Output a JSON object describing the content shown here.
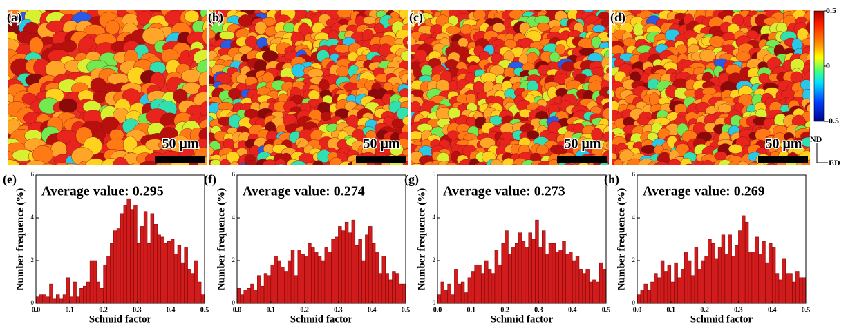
{
  "maps": [
    {
      "label": "(a)",
      "scale_bar": "50 μm"
    },
    {
      "label": "(b)",
      "scale_bar": "50 μm"
    },
    {
      "label": "(c)",
      "scale_bar": "50 μm"
    },
    {
      "label": "(d)",
      "scale_bar": "50 μm"
    }
  ],
  "colorbar": {
    "lim": [
      -0.5,
      0.5
    ],
    "ticks": [
      0.5,
      0,
      -0.5
    ]
  },
  "axes_key": {
    "nd": "ND",
    "ed": "ED"
  },
  "chart_data": [
    {
      "type": "histogram",
      "panel": "(e)",
      "title": "Average value: 0.295",
      "xlabel": "Schmid factor",
      "ylabel": "Number frequence (%)",
      "color": "#d01c1c",
      "bins": [
        0,
        0.01,
        0.02,
        0.03,
        0.04,
        0.05,
        0.06,
        0.07,
        0.08,
        0.09,
        0.1,
        0.11,
        0.12,
        0.13,
        0.14,
        0.15,
        0.16,
        0.17,
        0.18,
        0.19,
        0.2,
        0.21,
        0.22,
        0.23,
        0.24,
        0.25,
        0.26,
        0.27,
        0.28,
        0.29,
        0.3,
        0.31,
        0.32,
        0.33,
        0.34,
        0.35,
        0.36,
        0.37,
        0.38,
        0.39,
        0.4,
        0.41,
        0.42,
        0.43,
        0.44,
        0.45,
        0.46,
        0.47,
        0.48,
        0.49,
        0.5
      ],
      "values": [
        0.3,
        0.4,
        0.4,
        0.3,
        0.9,
        0.2,
        0.4,
        0.2,
        0.4,
        1.2,
        0.3,
        1.0,
        0.3,
        0.7,
        0.8,
        1.0,
        2.0,
        2.0,
        1.0,
        0.7,
        1.8,
        2.2,
        2.8,
        3.4,
        3.5,
        4.2,
        4.6,
        4.9,
        4.4,
        4.6,
        2.8,
        3.6,
        4.3,
        2.8,
        4.2,
        3.7,
        3.2,
        3.1,
        2.8,
        2.9,
        3.0,
        2.3,
        2.7,
        1.9,
        2.6,
        1.6,
        1.4,
        2.0,
        1.0,
        0.4
      ],
      "xlim": [
        0,
        0.5
      ],
      "ylim": [
        0,
        6
      ],
      "xticks": [
        {
          "value": 0,
          "label": "0.0"
        },
        0.1,
        0.2,
        0.3,
        0.4,
        0.5
      ],
      "yticks": [
        0,
        2,
        4,
        6
      ]
    },
    {
      "type": "histogram",
      "panel": "(f)",
      "title": "Average value: 0.274",
      "xlabel": "Schmid factor",
      "ylabel": "Number frequence (%)",
      "color": "#d01c1c",
      "bins": [
        0,
        0.01,
        0.02,
        0.03,
        0.04,
        0.05,
        0.06,
        0.07,
        0.08,
        0.09,
        0.1,
        0.11,
        0.12,
        0.13,
        0.14,
        0.15,
        0.16,
        0.17,
        0.18,
        0.19,
        0.2,
        0.21,
        0.22,
        0.23,
        0.24,
        0.25,
        0.26,
        0.27,
        0.28,
        0.29,
        0.3,
        0.31,
        0.32,
        0.33,
        0.34,
        0.35,
        0.36,
        0.37,
        0.38,
        0.39,
        0.4,
        0.41,
        0.42,
        0.43,
        0.44,
        0.45,
        0.46,
        0.47,
        0.48,
        0.49,
        0.5
      ],
      "values": [
        0.7,
        0.4,
        0.6,
        0.7,
        0.9,
        0.6,
        1.3,
        0.8,
        1.4,
        1.3,
        1.8,
        2.2,
        2.0,
        1.7,
        1.5,
        2.0,
        2.5,
        1.3,
        2.5,
        2.3,
        2.2,
        2.8,
        2.6,
        2.4,
        2.2,
        2.0,
        2.6,
        2.4,
        3.0,
        3.1,
        3.6,
        3.4,
        3.8,
        3.3,
        3.9,
        2.7,
        3.0,
        2.0,
        3.2,
        3.6,
        2.8,
        2.4,
        1.4,
        2.2,
        1.4,
        1.1,
        1.5,
        1.4,
        0.9,
        0.9
      ],
      "xlim": [
        0,
        0.5
      ],
      "ylim": [
        0,
        6
      ],
      "xticks": [
        {
          "value": 0,
          "label": "0.0"
        },
        0.1,
        0.2,
        0.3,
        0.4,
        0.5
      ],
      "yticks": [
        0,
        2,
        4,
        6
      ]
    },
    {
      "type": "histogram",
      "panel": "(g)",
      "title": "Average value: 0.273",
      "xlabel": "Schmid factor",
      "ylabel": "Number frequence (%)",
      "color": "#d01c1c",
      "bins": [
        0,
        0.01,
        0.02,
        0.03,
        0.04,
        0.05,
        0.06,
        0.07,
        0.08,
        0.09,
        0.1,
        0.11,
        0.12,
        0.13,
        0.14,
        0.15,
        0.16,
        0.17,
        0.18,
        0.19,
        0.2,
        0.21,
        0.22,
        0.23,
        0.24,
        0.25,
        0.26,
        0.27,
        0.28,
        0.29,
        0.3,
        0.31,
        0.32,
        0.33,
        0.34,
        0.35,
        0.36,
        0.37,
        0.38,
        0.39,
        0.4,
        0.41,
        0.42,
        0.43,
        0.44,
        0.45,
        0.46,
        0.47,
        0.48,
        0.49,
        0.5
      ],
      "values": [
        0.4,
        1.0,
        0.6,
        0.9,
        0.4,
        1.6,
        0.9,
        1.0,
        0.5,
        1.2,
        1.5,
        1.8,
        1.8,
        1.4,
        2.0,
        1.6,
        1.4,
        2.5,
        1.8,
        2.8,
        3.4,
        2.3,
        2.6,
        2.8,
        3.3,
        2.9,
        2.6,
        3.3,
        3.0,
        3.9,
        2.6,
        3.4,
        2.3,
        2.8,
        2.8,
        2.4,
        2.5,
        2.9,
        2.3,
        2.4,
        2.0,
        2.2,
        1.6,
        1.4,
        1.6,
        1.0,
        1.1,
        1.0,
        1.9,
        1.6
      ],
      "xlim": [
        0,
        0.5
      ],
      "ylim": [
        0,
        6
      ],
      "xticks": [
        {
          "value": 0,
          "label": "0.0"
        },
        0.1,
        0.2,
        0.3,
        0.4,
        0.5
      ],
      "yticks": [
        0,
        2,
        4,
        6
      ]
    },
    {
      "type": "histogram",
      "panel": "(h)",
      "title": "Average value: 0.269",
      "xlabel": "Schmid factor",
      "ylabel": "Number frequence (%)",
      "color": "#d01c1c",
      "bins": [
        0,
        0.01,
        0.02,
        0.03,
        0.04,
        0.05,
        0.06,
        0.07,
        0.08,
        0.09,
        0.1,
        0.11,
        0.12,
        0.13,
        0.14,
        0.15,
        0.16,
        0.17,
        0.18,
        0.19,
        0.2,
        0.21,
        0.22,
        0.23,
        0.24,
        0.25,
        0.26,
        0.27,
        0.28,
        0.29,
        0.3,
        0.31,
        0.32,
        0.33,
        0.34,
        0.35,
        0.36,
        0.37,
        0.38,
        0.39,
        0.4,
        0.41,
        0.42,
        0.43,
        0.44,
        0.45,
        0.46,
        0.47,
        0.48,
        0.49,
        0.5
      ],
      "values": [
        0.4,
        0.6,
        0.9,
        0.6,
        1.0,
        1.4,
        1.2,
        2.0,
        1.5,
        1.8,
        1.0,
        1.9,
        1.2,
        1.6,
        2.4,
        2.0,
        1.3,
        2.6,
        1.6,
        2.0,
        2.2,
        3.0,
        2.8,
        2.1,
        2.6,
        3.2,
        2.3,
        3.2,
        2.2,
        2.7,
        3.4,
        4.1,
        3.8,
        2.4,
        2.4,
        3.1,
        2.3,
        2.9,
        1.9,
        2.8,
        2.6,
        1.4,
        1.1,
        2.1,
        1.4,
        1.4,
        1.0,
        1.5,
        1.2,
        1.2
      ],
      "xlim": [
        0,
        0.5
      ],
      "ylim": [
        0,
        6
      ],
      "xticks": [
        {
          "value": 0,
          "label": "0.0"
        },
        0.1,
        0.2,
        0.3,
        0.4,
        0.5
      ],
      "yticks": [
        0,
        2,
        4,
        6
      ]
    }
  ]
}
